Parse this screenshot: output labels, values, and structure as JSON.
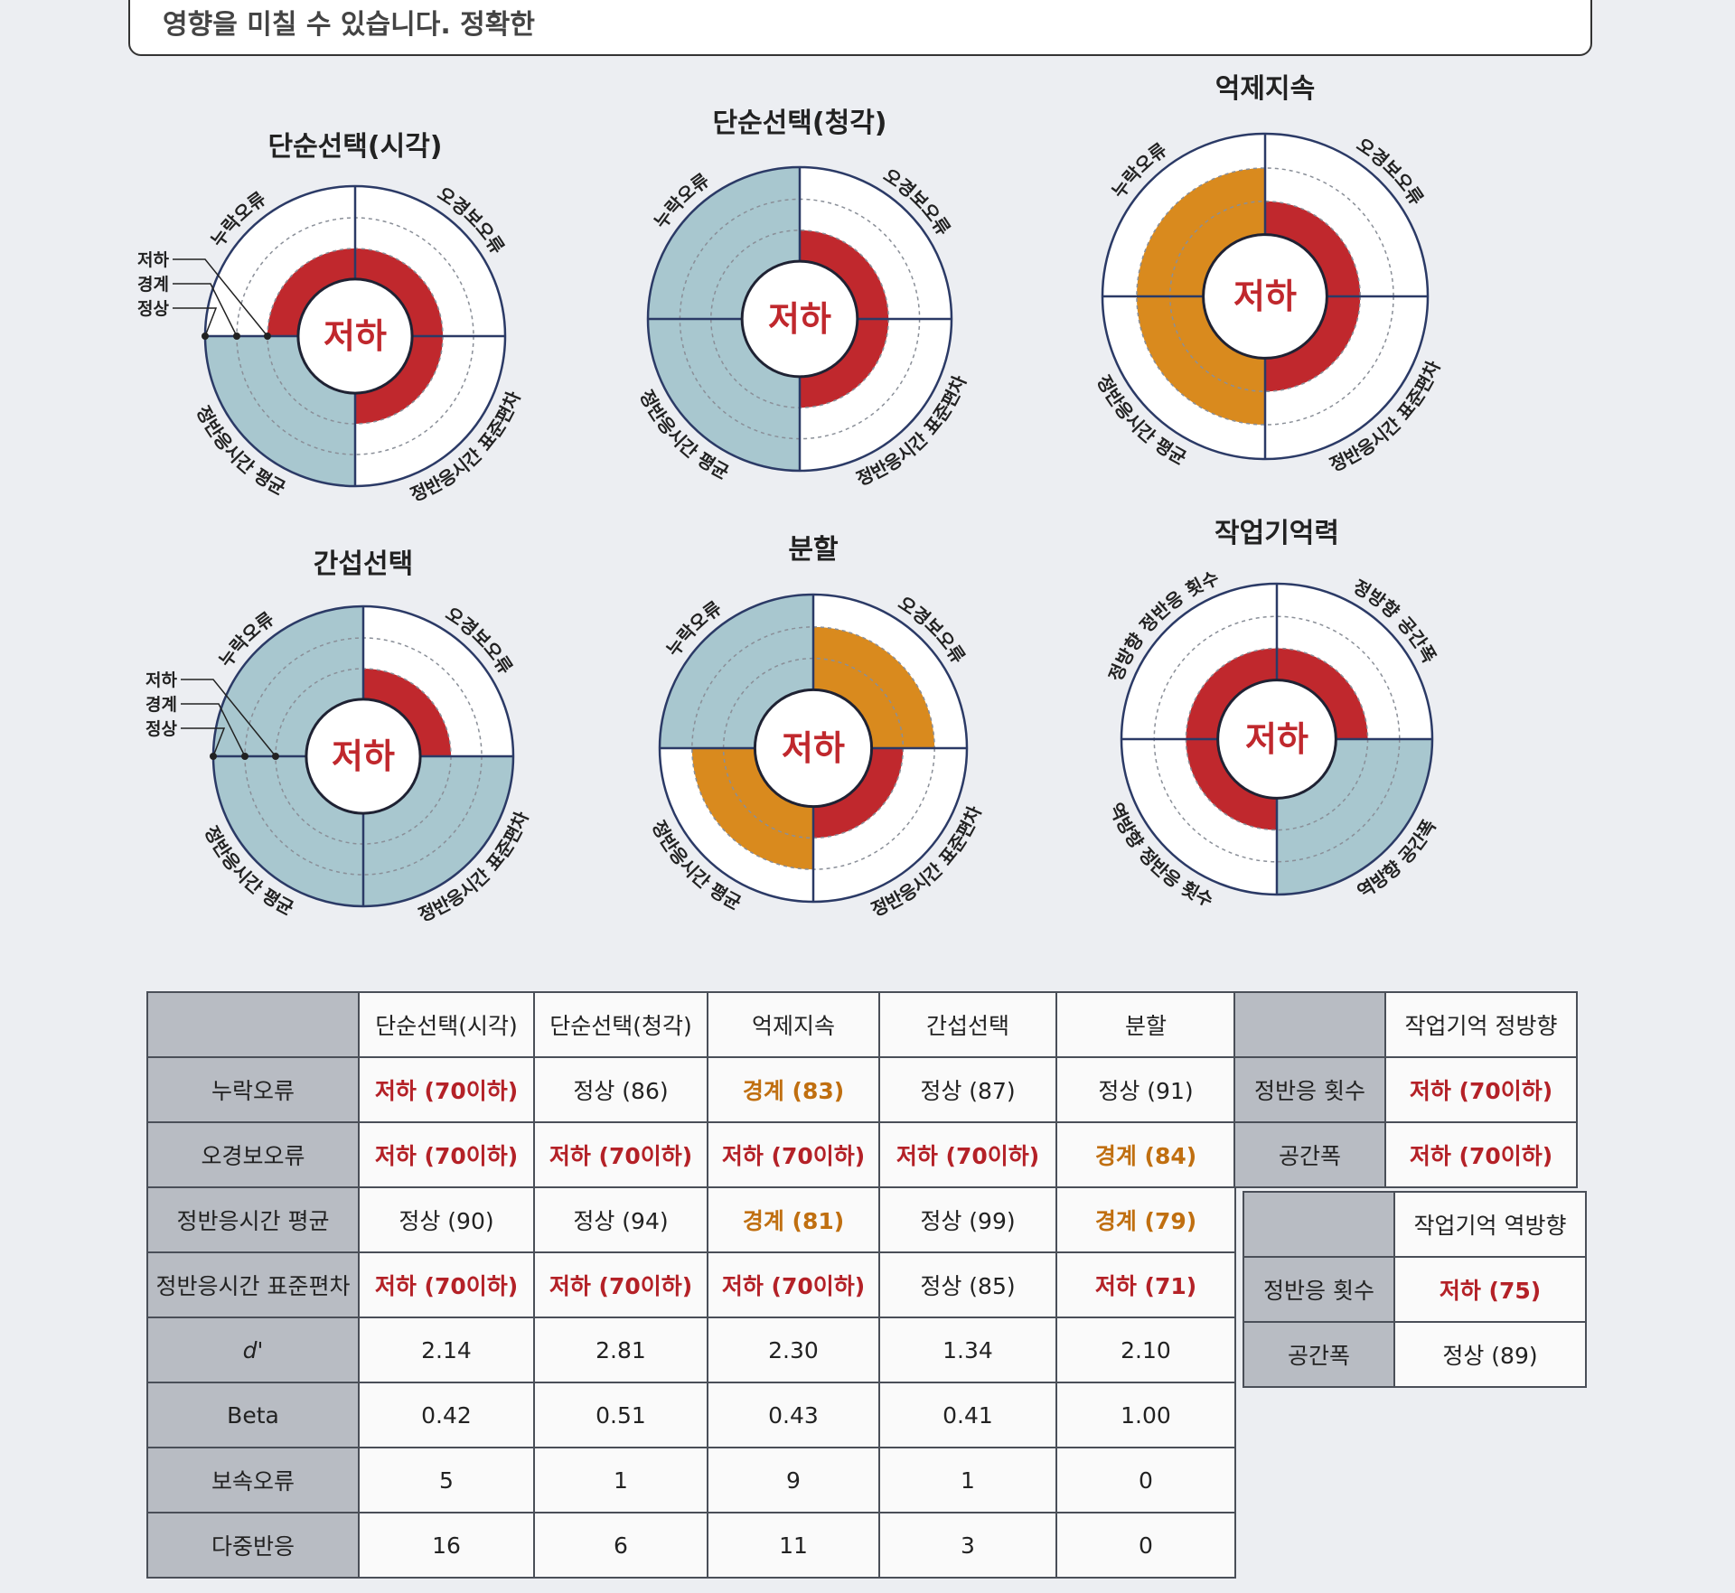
{
  "top_note": "영향을 미칠 수 있습니다. 정확한",
  "colors": {
    "low": "#c0282d",
    "border": "#d98a1e",
    "normal": "#a8c7cf",
    "ring_line": "#2b3a66",
    "dashed": "#8a8f98"
  },
  "legend": {
    "low": "저하",
    "border": "경계",
    "normal": "정상"
  },
  "chart_data": [
    {
      "type": "polar-area",
      "title": "단순선택(시각)",
      "center_label": "저하",
      "sectors": [
        {
          "label": "오경보오류",
          "status": "저하"
        },
        {
          "label": "정반응시간 표준편차",
          "status": "저하"
        },
        {
          "label": "정반응시간 평균",
          "status": "정상"
        },
        {
          "label": "누락오류",
          "status": "저하"
        }
      ]
    },
    {
      "type": "polar-area",
      "title": "단순선택(청각)",
      "center_label": "저하",
      "sectors": [
        {
          "label": "오경보오류",
          "status": "저하"
        },
        {
          "label": "정반응시간 표준편차",
          "status": "저하"
        },
        {
          "label": "정반응시간 평균",
          "status": "정상"
        },
        {
          "label": "누락오류",
          "status": "정상"
        }
      ]
    },
    {
      "type": "polar-area",
      "title": "억제지속",
      "center_label": "저하",
      "sectors": [
        {
          "label": "오경보오류",
          "status": "저하"
        },
        {
          "label": "정반응시간 표준편차",
          "status": "저하"
        },
        {
          "label": "정반응시간 평균",
          "status": "경계"
        },
        {
          "label": "누락오류",
          "status": "경계"
        }
      ]
    },
    {
      "type": "polar-area",
      "title": "간섭선택",
      "center_label": "저하",
      "sectors": [
        {
          "label": "오경보오류",
          "status": "저하"
        },
        {
          "label": "정반응시간 표준편차",
          "status": "정상"
        },
        {
          "label": "정반응시간 평균",
          "status": "정상"
        },
        {
          "label": "누락오류",
          "status": "정상"
        }
      ]
    },
    {
      "type": "polar-area",
      "title": "분할",
      "center_label": "저하",
      "sectors": [
        {
          "label": "오경보오류",
          "status": "경계"
        },
        {
          "label": "정반응시간 표준편차",
          "status": "저하"
        },
        {
          "label": "정반응시간 평균",
          "status": "경계"
        },
        {
          "label": "누락오류",
          "status": "정상"
        }
      ]
    },
    {
      "type": "polar-area",
      "title": "작업기억력",
      "center_label": "저하",
      "sectors": [
        {
          "label": "정방향 공간폭",
          "status": "저하"
        },
        {
          "label": "역방향 공간폭",
          "status": "정상"
        },
        {
          "label": "역방향 정반응 횟수",
          "status": "저하"
        },
        {
          "label": "정방향 정반응 횟수",
          "status": "저하"
        }
      ]
    }
  ],
  "main_table": {
    "headers": [
      "",
      "단순선택(시각)",
      "단순선택(청각)",
      "억제지속",
      "간섭선택",
      "분할"
    ],
    "rows": [
      {
        "label": "누락오류",
        "cells": [
          {
            "text": "저하 (70이하)",
            "status": "low"
          },
          {
            "text": "정상 (86)",
            "status": "normal"
          },
          {
            "text": "경계 (83)",
            "status": "border"
          },
          {
            "text": "정상 (87)",
            "status": "normal"
          },
          {
            "text": "정상 (91)",
            "status": "normal"
          }
        ]
      },
      {
        "label": "오경보오류",
        "cells": [
          {
            "text": "저하 (70이하)",
            "status": "low"
          },
          {
            "text": "저하 (70이하)",
            "status": "low"
          },
          {
            "text": "저하 (70이하)",
            "status": "low"
          },
          {
            "text": "저하 (70이하)",
            "status": "low"
          },
          {
            "text": "경계 (84)",
            "status": "border"
          }
        ]
      },
      {
        "label": "정반응시간 평균",
        "cells": [
          {
            "text": "정상 (90)",
            "status": "normal"
          },
          {
            "text": "정상 (94)",
            "status": "normal"
          },
          {
            "text": "경계 (81)",
            "status": "border"
          },
          {
            "text": "정상 (99)",
            "status": "normal"
          },
          {
            "text": "경계 (79)",
            "status": "border"
          }
        ]
      },
      {
        "label": "정반응시간 표준편차",
        "cells": [
          {
            "text": "저하 (70이하)",
            "status": "low"
          },
          {
            "text": "저하 (70이하)",
            "status": "low"
          },
          {
            "text": "저하 (70이하)",
            "status": "low"
          },
          {
            "text": "정상 (85)",
            "status": "normal"
          },
          {
            "text": "저하 (71)",
            "status": "low"
          }
        ]
      },
      {
        "label": "d'",
        "cells": [
          {
            "text": "2.14",
            "status": "normal"
          },
          {
            "text": "2.81",
            "status": "normal"
          },
          {
            "text": "2.30",
            "status": "normal"
          },
          {
            "text": "1.34",
            "status": "normal"
          },
          {
            "text": "2.10",
            "status": "normal"
          }
        ]
      },
      {
        "label": "Beta",
        "cells": [
          {
            "text": "0.42",
            "status": "normal"
          },
          {
            "text": "0.51",
            "status": "normal"
          },
          {
            "text": "0.43",
            "status": "normal"
          },
          {
            "text": "0.41",
            "status": "normal"
          },
          {
            "text": "1.00",
            "status": "normal"
          }
        ]
      },
      {
        "label": "보속오류",
        "cells": [
          {
            "text": "5",
            "status": "normal"
          },
          {
            "text": "1",
            "status": "normal"
          },
          {
            "text": "9",
            "status": "normal"
          },
          {
            "text": "1",
            "status": "normal"
          },
          {
            "text": "0",
            "status": "normal"
          }
        ]
      },
      {
        "label": "다중반응",
        "cells": [
          {
            "text": "16",
            "status": "normal"
          },
          {
            "text": "6",
            "status": "normal"
          },
          {
            "text": "11",
            "status": "normal"
          },
          {
            "text": "3",
            "status": "normal"
          },
          {
            "text": "0",
            "status": "normal"
          }
        ]
      }
    ]
  },
  "wm_forward_table": {
    "header": "작업기억 정방향",
    "rows": [
      {
        "label": "정반응 횟수",
        "text": "저하 (70이하)",
        "status": "low"
      },
      {
        "label": "공간폭",
        "text": "저하 (70이하)",
        "status": "low"
      }
    ]
  },
  "wm_backward_table": {
    "header": "작업기억 역방향",
    "rows": [
      {
        "label": "정반응 횟수",
        "text": "저하 (75)",
        "status": "low"
      },
      {
        "label": "공간폭",
        "text": "정상 (89)",
        "status": "normal"
      }
    ]
  }
}
